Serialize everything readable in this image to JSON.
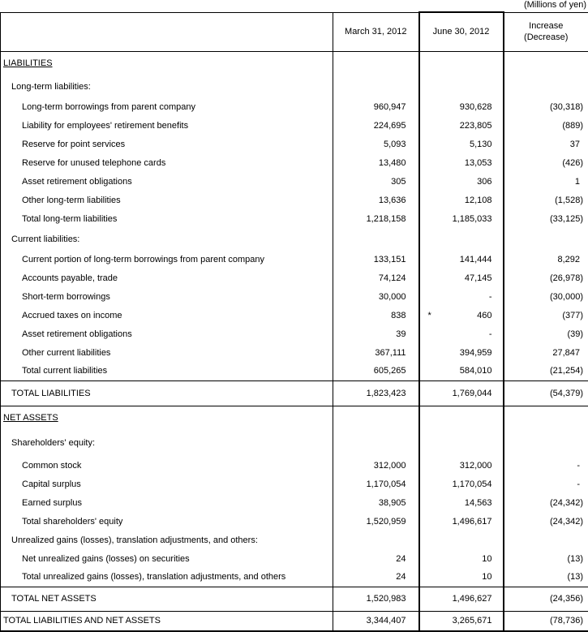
{
  "unit_note": "(Millions of yen)",
  "colors": {
    "background": "#ffffff",
    "text": "#000000",
    "border": "#000000"
  },
  "table": {
    "columns": {
      "label": "",
      "mar31": "March 31, 2012",
      "jun30": "June 30, 2012",
      "increase_line1": "Increase",
      "increase_line2": "(Decrease)"
    },
    "footnote_mark": "*",
    "rows": [
      {
        "type": "section",
        "label": "LIABILITIES",
        "v1": "",
        "v2": "",
        "v3": ""
      },
      {
        "type": "subsection",
        "label": "Long-term liabilities:",
        "v1": "",
        "v2": "",
        "v3": ""
      },
      {
        "type": "item",
        "label": "Long-term borrowings from parent company",
        "v1": "960,947",
        "v2": "930,628",
        "v3": "(30,318)"
      },
      {
        "type": "item",
        "label": "Liability for employees' retirement benefits",
        "v1": "224,695",
        "v2": "223,805",
        "v3": "(889)"
      },
      {
        "type": "item",
        "label": "Reserve for point services",
        "v1": "5,093",
        "v2": "5,130",
        "v3": "37"
      },
      {
        "type": "item",
        "label": "Reserve for unused telephone cards",
        "v1": "13,480",
        "v2": "13,053",
        "v3": "(426)"
      },
      {
        "type": "item",
        "label": "Asset retirement obligations",
        "v1": "305",
        "v2": "306",
        "v3": "1"
      },
      {
        "type": "item",
        "label": "Other long-term liabilities",
        "v1": "13,636",
        "v2": "12,108",
        "v3": "(1,528)"
      },
      {
        "type": "item",
        "label": "Total long-term liabilities",
        "v1": "1,218,158",
        "v2": "1,185,033",
        "v3": "(33,125)"
      },
      {
        "type": "subsection",
        "label": "Current liabilities:",
        "v1": "",
        "v2": "",
        "v3": ""
      },
      {
        "type": "item",
        "label": "Current portion of long-term borrowings from parent company",
        "v1": "133,151",
        "v2": "141,444",
        "v3": "8,292"
      },
      {
        "type": "item",
        "label": "Accounts payable, trade",
        "v1": "74,124",
        "v2": "47,145",
        "v3": "(26,978)"
      },
      {
        "type": "item",
        "label": "Short-term borrowings",
        "v1": "30,000",
        "v2": "-",
        "v3": "(30,000)"
      },
      {
        "type": "item",
        "label": "Accrued taxes on income",
        "v1": "838",
        "v2": "460",
        "v2_mark": "*",
        "v3": "(377)"
      },
      {
        "type": "item",
        "label": "Asset retirement obligations",
        "v1": "39",
        "v2": "-",
        "v3": "(39)"
      },
      {
        "type": "item",
        "label": "Other current liabilities",
        "v1": "367,111",
        "v2": "394,959",
        "v3": "27,847"
      },
      {
        "type": "item",
        "label": "Total current liabilities",
        "v1": "605,265",
        "v2": "584,010",
        "v3": "(21,254)"
      },
      {
        "type": "total1",
        "label": "TOTAL LIABILITIES",
        "v1": "1,823,423",
        "v2": "1,769,044",
        "v3": "(54,379)"
      },
      {
        "type": "section",
        "label": "NET ASSETS",
        "v1": "",
        "v2": "",
        "v3": ""
      },
      {
        "type": "subsection",
        "label": "Shareholders' equity:",
        "v1": "",
        "v2": "",
        "v3": ""
      },
      {
        "type": "item",
        "label": "Common stock",
        "v1": "312,000",
        "v2": "312,000",
        "v3": "-"
      },
      {
        "type": "item",
        "label": "Capital surplus",
        "v1": "1,170,054",
        "v2": "1,170,054",
        "v3": "-"
      },
      {
        "type": "item",
        "label": "Earned surplus",
        "v1": "38,905",
        "v2": "14,563",
        "v3": "(24,342)"
      },
      {
        "type": "item",
        "label": "Total shareholders' equity",
        "v1": "1,520,959",
        "v2": "1,496,617",
        "v3": "(24,342)"
      },
      {
        "type": "subsection",
        "label": "Unrealized gains (losses), translation adjustments, and others:",
        "v1": "",
        "v2": "",
        "v3": ""
      },
      {
        "type": "item",
        "label": "Net unrealized gains (losses) on securities",
        "v1": "24",
        "v2": "10",
        "v3": "(13)"
      },
      {
        "type": "item",
        "label": "Total unrealized gains (losses), translation adjustments, and others",
        "v1": "24",
        "v2": "10",
        "v3": "(13)"
      },
      {
        "type": "total1",
        "label": "TOTAL NET ASSETS",
        "v1": "1,520,983",
        "v2": "1,496,627",
        "v3": "(24,356)"
      },
      {
        "type": "total0",
        "label": "TOTAL LIABILITIES AND NET ASSETS",
        "v1": "3,344,407",
        "v2": "3,265,671",
        "v3": "(78,736)"
      }
    ]
  }
}
